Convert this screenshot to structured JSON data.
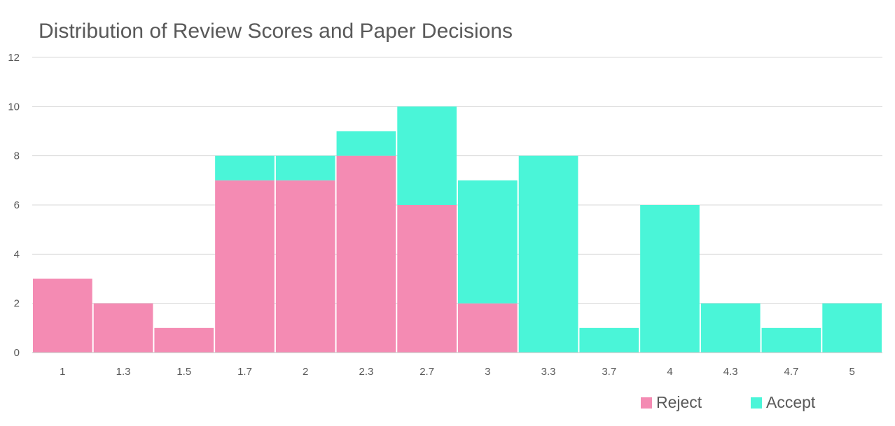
{
  "chart_data": {
    "type": "bar",
    "stacked": true,
    "title": "Distribution of Review Scores and Paper Decisions",
    "xlabel": "",
    "ylabel": "",
    "categories": [
      "1",
      "1.3",
      "1.5",
      "1.7",
      "2",
      "2.3",
      "2.7",
      "3",
      "3.3",
      "3.7",
      "4",
      "4.3",
      "4.7",
      "5"
    ],
    "series": [
      {
        "name": "Reject",
        "color": "#F48BB3",
        "values": [
          3,
          2,
          1,
          7,
          7,
          8,
          6,
          2,
          0,
          0,
          0,
          0,
          0,
          0
        ]
      },
      {
        "name": "Accept",
        "color": "#4AF5D8",
        "values": [
          0,
          0,
          0,
          1,
          1,
          1,
          4,
          5,
          8,
          1,
          6,
          2,
          1,
          2
        ]
      }
    ],
    "ylim": [
      0,
      12
    ],
    "yticks": [
      "0",
      "2",
      "4",
      "6",
      "8",
      "10",
      "12"
    ],
    "grid": true,
    "legend_position": "bottom-right"
  }
}
